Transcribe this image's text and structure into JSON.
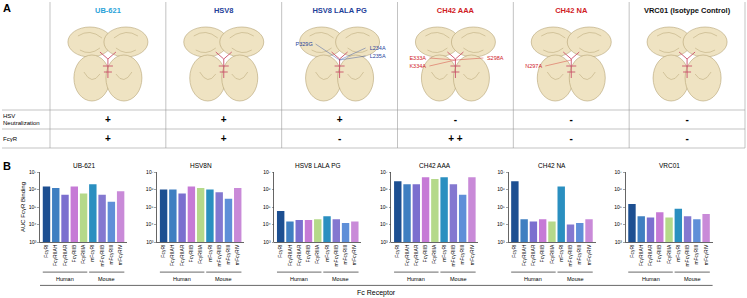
{
  "panel_a": {
    "label": "A",
    "rows": [
      "HSV Neutralization",
      "FcγR"
    ],
    "columns": [
      {
        "name": "UB-621",
        "color": "#2aa3d9",
        "mutations": [],
        "mutation_color": "#1f3f9a",
        "values": [
          "+",
          "+"
        ]
      },
      {
        "name": "HSV8",
        "color": "#1f3f9a",
        "mutations": [],
        "mutation_color": "#1f3f9a",
        "values": [
          "+",
          "+"
        ]
      },
      {
        "name": "HSV8 LALA PG",
        "color": "#1f3f9a",
        "mutations": [
          "P329G",
          "L234A",
          "L235A"
        ],
        "mutation_color": "#1f3f9a",
        "values": [
          "+",
          "-"
        ]
      },
      {
        "name": "CH42 AAA",
        "color": "#d0201f",
        "mutations": [
          "E333A",
          "K334A",
          "S298A"
        ],
        "mutation_color": "#d0201f",
        "values": [
          "-",
          "+ +"
        ]
      },
      {
        "name": "CH42 NA",
        "color": "#d0201f",
        "mutations": [
          "N297A"
        ],
        "mutation_color": "#d0201f",
        "values": [
          "-",
          "-"
        ]
      },
      {
        "name": "VRC01 (Isotype Control)",
        "color": "#111111",
        "mutations": [],
        "mutation_color": "#111111",
        "values": [
          "-",
          "-"
        ]
      }
    ]
  },
  "panel_b_label": "B",
  "x_label": "Fc Receptor",
  "chart_data": [
    {
      "type": "bar",
      "title": "UB-621",
      "y_label": "AUC FcγR Binding",
      "categories": [
        "FcγRI",
        "FcγRIIAH",
        "FcγRIIAR",
        "FcγRIIB",
        "FcγRIIIA",
        "mFcγRI",
        "mFcγRIIB",
        "mFcγRIII",
        "mFcγRIV"
      ],
      "values": [
        1500000,
        1200000,
        500000,
        1500000,
        600000,
        2000000,
        500000,
        200000,
        800000
      ],
      "colors": [
        "#1d4f91",
        "#3f7fc1",
        "#7b6fcf",
        "#c67ad6",
        "#b5d98a",
        "#2a8fc0",
        "#8478d0",
        "#5f8fd8",
        "#c98ad8"
      ],
      "groups": [
        {
          "label": "Human",
          "categories": [
            "FcγRI",
            "FcγRIIAH",
            "FcγRIIAR",
            "FcγRIIB",
            "FcγRIIIA"
          ]
        },
        {
          "label": "Mouse",
          "categories": [
            "mFcγRI",
            "mFcγRIIB",
            "mFcγRIII",
            "mFcγRIV"
          ]
        }
      ],
      "log": "y",
      "grid": false,
      "ylim": [
        1000,
        10000000
      ],
      "yticks": [
        {
          "value": 1000,
          "label": "10³"
        },
        {
          "value": 10000,
          "label": "10⁴"
        },
        {
          "value": 100000,
          "label": "10⁵"
        },
        {
          "value": 1000000,
          "label": "10⁶"
        },
        {
          "value": 10000000,
          "label": "10⁷"
        }
      ]
    },
    {
      "type": "bar",
      "title": "HSV8N",
      "categories": [
        "FcγRI",
        "FcγRIIAH",
        "FcγRIIAR",
        "FcγRIIB",
        "FcγRIIIA",
        "mFcγRI",
        "mFcγRIIB",
        "mFcγRIII",
        "mFcγRIV"
      ],
      "values": [
        1000000,
        1000000,
        600000,
        1500000,
        1200000,
        1000000,
        700000,
        300000,
        1200000
      ],
      "colors": [
        "#1d4f91",
        "#3f7fc1",
        "#7b6fcf",
        "#c67ad6",
        "#b5d98a",
        "#2a8fc0",
        "#8478d0",
        "#5f8fd8",
        "#c98ad8"
      ],
      "groups": [
        {
          "label": "Human",
          "categories": [
            "FcγRI",
            "FcγRIIAH",
            "FcγRIIAR",
            "FcγRIIB",
            "FcγRIIIA"
          ]
        },
        {
          "label": "Mouse",
          "categories": [
            "mFcγRI",
            "mFcγRIIB",
            "mFcγRIII",
            "mFcγRIV"
          ]
        }
      ],
      "log": "y",
      "grid": false,
      "ylim": [
        1000,
        10000000
      ],
      "yticks": [
        {
          "value": 1000,
          "label": "10³"
        },
        {
          "value": 10000,
          "label": "10⁴"
        },
        {
          "value": 100000,
          "label": "10⁵"
        },
        {
          "value": 1000000,
          "label": "10⁶"
        },
        {
          "value": 10000000,
          "label": "10⁷"
        }
      ]
    },
    {
      "type": "bar",
      "title": "HSV8 LALA PG",
      "categories": [
        "FcγRI",
        "FcγRIIAH",
        "FcγRIIAR",
        "FcγRIIB",
        "FcγRIIIA",
        "mFcγRI",
        "mFcγRIIB",
        "mFcγRIII",
        "mFcγRIV"
      ],
      "values": [
        60000,
        15000,
        18000,
        18000,
        20000,
        30000,
        20000,
        12000,
        15000
      ],
      "colors": [
        "#1d4f91",
        "#3f7fc1",
        "#7b6fcf",
        "#c67ad6",
        "#b5d98a",
        "#2a8fc0",
        "#8478d0",
        "#5f8fd8",
        "#c98ad8"
      ],
      "groups": [
        {
          "label": "Human",
          "categories": [
            "FcγRI",
            "FcγRIIAH",
            "FcγRIIAR",
            "FcγRIIB",
            "FcγRIIIA"
          ]
        },
        {
          "label": "Mouse",
          "categories": [
            "mFcγRI",
            "mFcγRIIB",
            "mFcγRIII",
            "mFcγRIV"
          ]
        }
      ],
      "log": "y",
      "grid": false,
      "ylim": [
        1000,
        10000000
      ],
      "yticks": [
        {
          "value": 1000,
          "label": "10³"
        },
        {
          "value": 10000,
          "label": "10⁴"
        },
        {
          "value": 100000,
          "label": "10⁵"
        },
        {
          "value": 1000000,
          "label": "10⁶"
        },
        {
          "value": 10000000,
          "label": "10⁷"
        }
      ]
    },
    {
      "type": "bar",
      "title": "CH42 AAA",
      "categories": [
        "FcγRI",
        "FcγRIIAH",
        "FcγRIIAR",
        "FcγRIIB",
        "FcγRIIIA",
        "mFcγRI",
        "mFcγRIIB",
        "mFcγRIII",
        "mFcγRIV"
      ],
      "values": [
        3000000,
        2000000,
        2000000,
        5000000,
        4000000,
        5000000,
        2000000,
        500000,
        5000000
      ],
      "colors": [
        "#1d4f91",
        "#3f7fc1",
        "#7b6fcf",
        "#c67ad6",
        "#b5d98a",
        "#2a8fc0",
        "#8478d0",
        "#5f8fd8",
        "#c98ad8"
      ],
      "groups": [
        {
          "label": "Human",
          "categories": [
            "FcγRI",
            "FcγRIIAH",
            "FcγRIIAR",
            "FcγRIIB",
            "FcγRIIIA"
          ]
        },
        {
          "label": "Mouse",
          "categories": [
            "mFcγRI",
            "mFcγRIIB",
            "mFcγRIII",
            "mFcγRIV"
          ]
        }
      ],
      "log": "y",
      "grid": false,
      "ylim": [
        1000,
        10000000
      ],
      "yticks": [
        {
          "value": 1000,
          "label": "10³"
        },
        {
          "value": 10000,
          "label": "10⁴"
        },
        {
          "value": 100000,
          "label": "10⁵"
        },
        {
          "value": 1000000,
          "label": "10⁶"
        },
        {
          "value": 10000000,
          "label": "10⁷"
        }
      ]
    },
    {
      "type": "bar",
      "title": "CH42 NA",
      "categories": [
        "FcγRI",
        "FcγRIIAH",
        "FcγRIIAR",
        "FcγRIIB",
        "FcγRIIIA",
        "mFcγRI",
        "mFcγRIIB",
        "mFcγRIII",
        "mFcγRIV"
      ],
      "values": [
        3000000,
        20000,
        15000,
        20000,
        15000,
        1500000,
        10000,
        12000,
        20000
      ],
      "colors": [
        "#1d4f91",
        "#3f7fc1",
        "#7b6fcf",
        "#c67ad6",
        "#b5d98a",
        "#2a8fc0",
        "#8478d0",
        "#5f8fd8",
        "#c98ad8"
      ],
      "groups": [
        {
          "label": "Human",
          "categories": [
            "FcγRI",
            "FcγRIIAH",
            "FcγRIIAR",
            "FcγRIIB",
            "FcγRIIIA"
          ]
        },
        {
          "label": "Mouse",
          "categories": [
            "mFcγRI",
            "mFcγRIIB",
            "mFcγRIII",
            "mFcγRIV"
          ]
        }
      ],
      "log": "y",
      "grid": false,
      "ylim": [
        1000,
        10000000
      ],
      "yticks": [
        {
          "value": 1000,
          "label": "10³"
        },
        {
          "value": 10000,
          "label": "10⁴"
        },
        {
          "value": 100000,
          "label": "10⁵"
        },
        {
          "value": 1000000,
          "label": "10⁶"
        },
        {
          "value": 10000000,
          "label": "10⁷"
        }
      ]
    },
    {
      "type": "bar",
      "title": "VRC01",
      "categories": [
        "FcγRI",
        "FcγRIIAH",
        "FcγRIIAR",
        "FcγRIIB",
        "FcγRIIIA",
        "mFcγRI",
        "mFcγRIIB",
        "mFcγRIII",
        "mFcγRIV"
      ],
      "values": [
        150000,
        30000,
        25000,
        50000,
        25000,
        80000,
        30000,
        20000,
        40000
      ],
      "colors": [
        "#1d4f91",
        "#3f7fc1",
        "#7b6fcf",
        "#c67ad6",
        "#b5d98a",
        "#2a8fc0",
        "#8478d0",
        "#5f8fd8",
        "#c98ad8"
      ],
      "groups": [
        {
          "label": "Human",
          "categories": [
            "FcγRI",
            "FcγRIIAH",
            "FcγRIIAR",
            "FcγRIIB",
            "FcγRIIIA"
          ]
        },
        {
          "label": "Mouse",
          "categories": [
            "mFcγRI",
            "mFcγRIIB",
            "mFcγRIII",
            "mFcγRIV"
          ]
        }
      ],
      "log": "y",
      "grid": false,
      "ylim": [
        1000,
        10000000
      ],
      "yticks": [
        {
          "value": 1000,
          "label": "10³"
        },
        {
          "value": 10000,
          "label": "10⁴"
        },
        {
          "value": 100000,
          "label": "10⁵"
        },
        {
          "value": 1000000,
          "label": "10⁶"
        },
        {
          "value": 10000000,
          "label": "10⁷"
        }
      ]
    }
  ]
}
